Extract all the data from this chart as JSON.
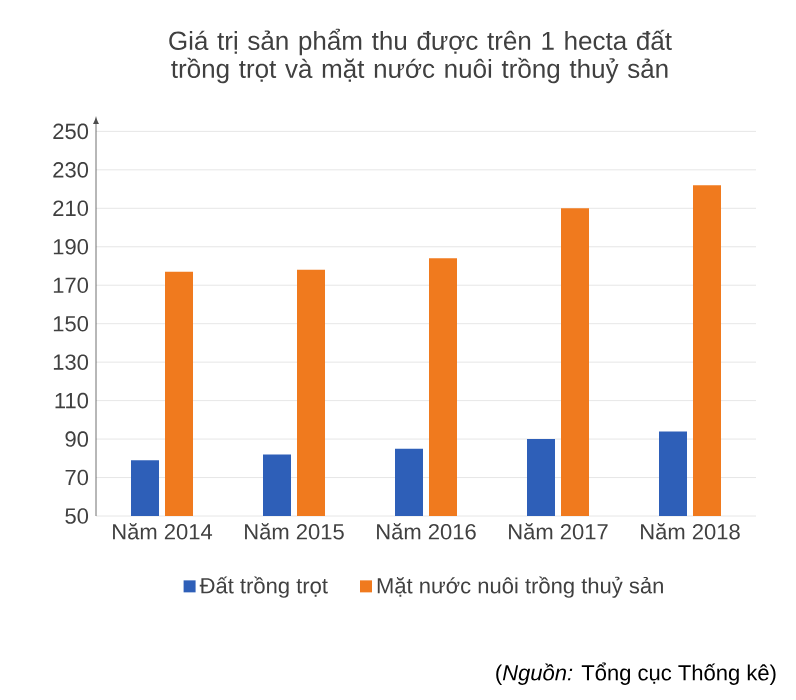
{
  "chart_data": {
    "type": "bar",
    "title": "Giá trị sản phẩm thu được trên 1 hecta đất trồng trọt và mặt nước nuôi trồng thuỷ sản",
    "categories": [
      "Năm 2014",
      "Năm 2015",
      "Năm 2016",
      "Năm 2017",
      "Năm 2018"
    ],
    "series": [
      {
        "name": "Đất trồng trọt",
        "color": "#2e5fb8",
        "values": [
          79,
          82,
          85,
          90,
          94
        ]
      },
      {
        "name": "Mặt nước nuôi trồng thuỷ sản",
        "color": "#f07a1e",
        "values": [
          177,
          178,
          184,
          210,
          222
        ]
      }
    ],
    "ylim": [
      50,
      250
    ],
    "yticks": [
      50,
      70,
      90,
      110,
      130,
      150,
      170,
      190,
      210,
      230,
      250
    ],
    "grid": "y",
    "legend": "bottom",
    "annotations": [
      "(*Nguồn:* Tổng cục Thống kê)"
    ]
  }
}
